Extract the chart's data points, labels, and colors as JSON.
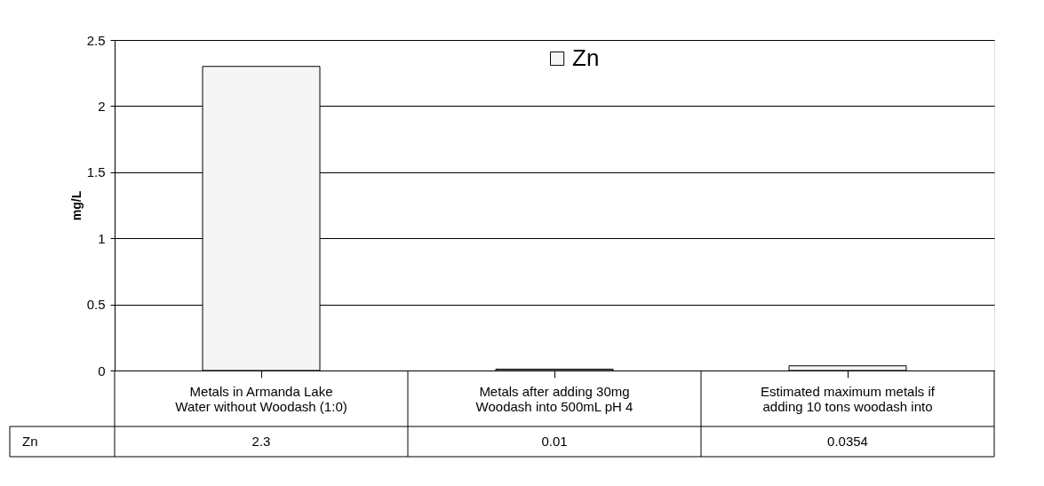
{
  "chart_data": {
    "type": "bar",
    "ylabel": "mg/L",
    "categories": [
      "Metals in Armanda Lake Water without Woodash (1:0)",
      "Metals after adding 30mg Woodash into 500mL pH 4",
      "Estimated maximum metals if adding 10 tons woodash into"
    ],
    "series": [
      {
        "name": "Zn",
        "color": "#f5f5f5",
        "values": [
          2.3,
          0.01,
          0.0354
        ]
      }
    ],
    "ylim": [
      0,
      2.5
    ],
    "yticks": [
      0,
      0.5,
      1,
      1.5,
      2,
      2.5
    ],
    "grid": "y",
    "legend": "top right",
    "data_labels": true
  }
}
